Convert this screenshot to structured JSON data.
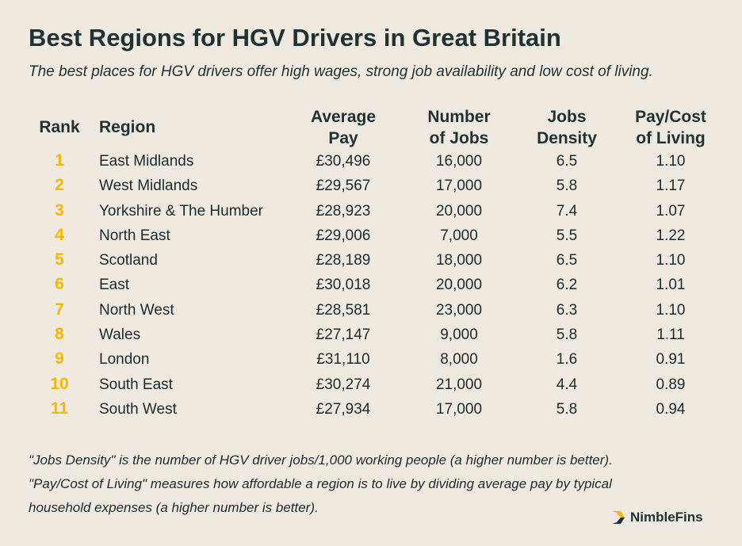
{
  "title": "Best Regions for HGV Drivers in Great Britain",
  "subtitle": "The best places for HGV drivers offer high wages, strong job availability and low cost of living.",
  "colors": {
    "background": "#efe9df",
    "rank": "#f5b800",
    "text": "#1e3133"
  },
  "chart_data": {
    "type": "table",
    "columns": [
      "Rank",
      "Region",
      "Average\nPay",
      "Number\nof Jobs",
      "Jobs\nDensity",
      "Pay/Cost\nof Living"
    ],
    "rows": [
      {
        "rank": "1",
        "region": "East Midlands",
        "pay": "£30,496",
        "jobs": "16,000",
        "density": "6.5",
        "pcol": "1.10"
      },
      {
        "rank": "2",
        "region": "West Midlands",
        "pay": "£29,567",
        "jobs": "17,000",
        "density": "5.8",
        "pcol": "1.17"
      },
      {
        "rank": "3",
        "region": "Yorkshire & The Humber",
        "pay": "£28,923",
        "jobs": "20,000",
        "density": "7.4",
        "pcol": "1.07"
      },
      {
        "rank": "4",
        "region": "North East",
        "pay": "£29,006",
        "jobs": "7,000",
        "density": "5.5",
        "pcol": "1.22"
      },
      {
        "rank": "5",
        "region": "Scotland",
        "pay": "£28,189",
        "jobs": "18,000",
        "density": "6.5",
        "pcol": "1.10"
      },
      {
        "rank": "6",
        "region": "East",
        "pay": "£30,018",
        "jobs": "20,000",
        "density": "6.2",
        "pcol": "1.01"
      },
      {
        "rank": "7",
        "region": "North West",
        "pay": "£28,581",
        "jobs": "23,000",
        "density": "6.3",
        "pcol": "1.10"
      },
      {
        "rank": "8",
        "region": "Wales",
        "pay": "£27,147",
        "jobs": "9,000",
        "density": "5.8",
        "pcol": "1.11"
      },
      {
        "rank": "9",
        "region": "London",
        "pay": "£31,110",
        "jobs": "8,000",
        "density": "1.6",
        "pcol": "0.91"
      },
      {
        "rank": "10",
        "region": "South East",
        "pay": "£30,274",
        "jobs": "21,000",
        "density": "4.4",
        "pcol": "0.89"
      },
      {
        "rank": "11",
        "region": "South West",
        "pay": "£27,934",
        "jobs": "17,000",
        "density": "5.8",
        "pcol": "0.94"
      }
    ]
  },
  "footnotes": [
    "\"Jobs Density\" is the number of HGV driver jobs/1,000 working people (a higher number is better).",
    "\"Pay/Cost of Living\" measures how affordable a region is to live by dividing average pay by typical",
    "household expenses (a higher number is better)."
  ],
  "brand": {
    "name": "NimbleFins",
    "logo_icon": "nimblefins-chevron-icon"
  }
}
